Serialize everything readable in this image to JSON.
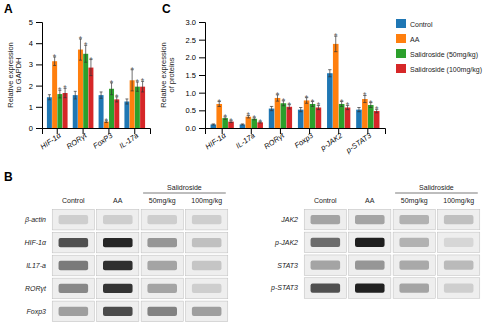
{
  "chart_data": [
    {
      "type": "bar",
      "title": "A",
      "categories": [
        "HIF-1α",
        "RORγt",
        "FoxP3",
        "IL-17a"
      ],
      "series": [
        {
          "name": "Control",
          "values": [
            1.45,
            1.55,
            1.55,
            1.25
          ],
          "errors": [
            0.12,
            0.18,
            0.15,
            0.12
          ]
        },
        {
          "name": "AA",
          "values": [
            3.15,
            3.7,
            0.3,
            2.25
          ],
          "errors": [
            0.2,
            0.5,
            0.04,
            0.5
          ]
        },
        {
          "name": "Salidroside (50mg/kg)",
          "values": [
            1.6,
            3.5,
            1.85,
            1.95
          ],
          "errors": [
            0.18,
            0.4,
            0.28,
            0.22
          ]
        },
        {
          "name": "Salidroside (100mg/kg)",
          "values": [
            1.65,
            2.85,
            1.35,
            1.95
          ],
          "errors": [
            0.22,
            0.38,
            0.12,
            0.25
          ]
        }
      ],
      "ylabel": "Relative expression\nto GAPDH",
      "ylim": [
        0,
        5.0
      ],
      "yticks": [
        0,
        1,
        2,
        3,
        4,
        5
      ],
      "legend": "right",
      "annotations": [
        {
          "text": "*",
          "series": 1
        },
        {
          "text": "*",
          "series": 2
        },
        {
          "text": "*",
          "series": 3
        }
      ]
    },
    {
      "type": "bar",
      "title": "C",
      "categories": [
        "HIF-1α",
        "IL-17a",
        "RORγt",
        "Foxp3",
        "p-JAK2",
        "p-STAT3"
      ],
      "series": [
        {
          "values": [
            0.1,
            0.1,
            0.55,
            0.52,
            1.55,
            0.52
          ],
          "errors": [
            0.015,
            0.015,
            0.06,
            0.06,
            0.1,
            0.06
          ]
        },
        {
          "values": [
            0.68,
            0.32,
            0.85,
            0.78,
            2.38,
            0.82
          ],
          "errors": [
            0.07,
            0.035,
            0.09,
            0.08,
            0.22,
            0.1
          ]
        },
        {
          "values": [
            0.28,
            0.26,
            0.7,
            0.68,
            0.68,
            0.65
          ],
          "errors": [
            0.035,
            0.028,
            0.07,
            0.07,
            0.07,
            0.07
          ]
        },
        {
          "values": [
            0.18,
            0.16,
            0.6,
            0.58,
            0.58,
            0.48
          ],
          "errors": [
            0.025,
            0.018,
            0.06,
            0.06,
            0.06,
            0.05
          ]
        }
      ],
      "ylabel": "Relative expression\nof proteins",
      "ylim": [
        0,
        3.0
      ],
      "yticks": [
        {
          "value": 0.0,
          "label": "0.0"
        },
        0.5,
        {
          "value": 1.0,
          "label": "1.0"
        },
        1.5,
        {
          "value": 2.0,
          "label": "2.0"
        },
        2.5,
        {
          "value": 3.0,
          "label": "3.0"
        }
      ],
      "annotations": [
        {
          "text": "*",
          "series": 1
        },
        {
          "text": "*",
          "series": 2
        },
        {
          "text": "*",
          "series": 3
        }
      ]
    },
    {
      "type": "heatmap",
      "title": "B",
      "x": [
        "Control",
        "AA",
        "50mg/kg",
        "100mg/kg"
      ],
      "y": [
        "β-actin",
        "HIF-1α",
        "IL17-a",
        "RORγt",
        "Foxp3"
      ],
      "values": [
        [
          0.65,
          0.65,
          0.65,
          0.65
        ],
        [
          0.2,
          0.05,
          0.45,
          0.6
        ],
        [
          0.35,
          0.08,
          0.5,
          0.62
        ],
        [
          0.4,
          0.1,
          0.5,
          0.65
        ],
        [
          0.48,
          0.18,
          0.38,
          0.48
        ]
      ],
      "annotations": [
        {
          "text": "Salidroside"
        }
      ]
    },
    {
      "type": "heatmap",
      "x": [
        "Control",
        "AA",
        "50mg/kg",
        "100mg/kg"
      ],
      "y": [
        "JAK2",
        "p-JAK2",
        "STAT3",
        "p-STAT3"
      ],
      "values": [
        [
          0.5,
          0.5,
          0.55,
          0.6
        ],
        [
          0.3,
          0.02,
          0.55,
          0.68
        ],
        [
          0.5,
          0.45,
          0.52,
          0.58
        ],
        [
          0.2,
          0.03,
          0.5,
          0.65
        ]
      ],
      "annotations": [
        {
          "text": "Salidroside"
        }
      ]
    }
  ]
}
